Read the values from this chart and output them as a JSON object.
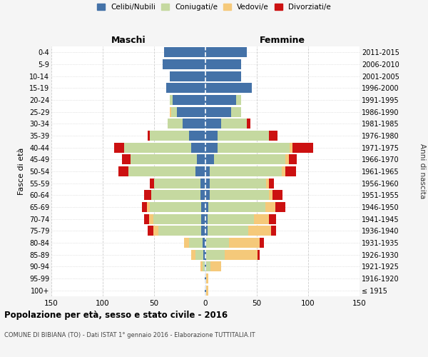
{
  "age_groups": [
    "100+",
    "95-99",
    "90-94",
    "85-89",
    "80-84",
    "75-79",
    "70-74",
    "65-69",
    "60-64",
    "55-59",
    "50-54",
    "45-49",
    "40-44",
    "35-39",
    "30-34",
    "25-29",
    "20-24",
    "15-19",
    "10-14",
    "5-9",
    "0-4"
  ],
  "birth_years": [
    "≤ 1915",
    "1916-1920",
    "1921-1925",
    "1926-1930",
    "1931-1935",
    "1936-1940",
    "1941-1945",
    "1946-1950",
    "1951-1955",
    "1956-1960",
    "1961-1965",
    "1966-1970",
    "1971-1975",
    "1976-1980",
    "1981-1985",
    "1986-1990",
    "1991-1995",
    "1996-2000",
    "2001-2005",
    "2006-2010",
    "2011-2015"
  ],
  "colors": {
    "celibi": "#4472a8",
    "coniugati": "#c5d9a0",
    "vedovi": "#f5c97a",
    "divorziati": "#cc1111"
  },
  "maschi": {
    "celibi": [
      1,
      1,
      1,
      2,
      3,
      4,
      4,
      4,
      5,
      5,
      10,
      8,
      14,
      16,
      22,
      28,
      32,
      38,
      35,
      42,
      40
    ],
    "coniugati": [
      0,
      0,
      2,
      8,
      13,
      42,
      47,
      50,
      48,
      45,
      65,
      65,
      65,
      38,
      15,
      5,
      3,
      0,
      0,
      0,
      0
    ],
    "vedovi": [
      0,
      0,
      2,
      4,
      5,
      5,
      4,
      3,
      0,
      0,
      0,
      0,
      0,
      0,
      0,
      2,
      0,
      0,
      0,
      0,
      0
    ],
    "divorziati": [
      0,
      0,
      0,
      0,
      0,
      5,
      5,
      5,
      7,
      4,
      10,
      8,
      10,
      2,
      0,
      0,
      0,
      0,
      0,
      0,
      0
    ]
  },
  "femmine": {
    "celibi": [
      1,
      1,
      1,
      1,
      1,
      2,
      2,
      3,
      4,
      4,
      4,
      8,
      12,
      12,
      15,
      25,
      30,
      45,
      35,
      35,
      40
    ],
    "coniugati": [
      0,
      0,
      4,
      18,
      22,
      40,
      45,
      55,
      58,
      55,
      70,
      70,
      70,
      50,
      25,
      10,
      5,
      0,
      0,
      0,
      0
    ],
    "vedovi": [
      2,
      2,
      10,
      32,
      30,
      22,
      15,
      10,
      3,
      3,
      4,
      3,
      3,
      0,
      0,
      0,
      0,
      0,
      0,
      0,
      0
    ],
    "divorziati": [
      0,
      0,
      0,
      2,
      4,
      5,
      7,
      10,
      10,
      5,
      10,
      8,
      20,
      8,
      4,
      0,
      0,
      0,
      0,
      0,
      0
    ]
  },
  "xlim": 150,
  "title": "Popolazione per età, sesso e stato civile - 2016",
  "subtitle": "COMUNE DI BIBIANA (TO) - Dati ISTAT 1° gennaio 2016 - Elaborazione TUTTITALIA.IT",
  "ylabel_left": "Fasce di età",
  "ylabel_right": "Anni di nascita",
  "xlabel_maschi": "Maschi",
  "xlabel_femmine": "Femmine",
  "bg_color": "#f5f5f5",
  "plot_bg": "#ffffff"
}
